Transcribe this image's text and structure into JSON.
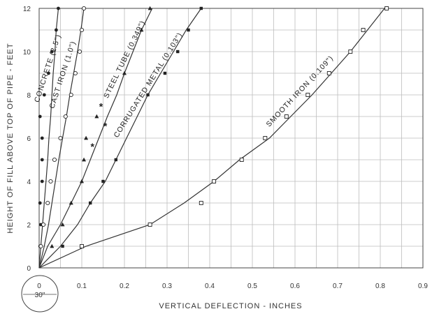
{
  "chart_data": {
    "type": "line",
    "title": "",
    "xlabel": "VERTICAL DEFLECTION - INCHES",
    "ylabel": "HEIGHT OF FILL ABOVE TOP OF PIPE - FEET",
    "xlim": [
      0,
      0.9
    ],
    "ylim": [
      0,
      12
    ],
    "xticks": [
      0,
      0.1,
      0.2,
      0.3,
      0.4,
      0.5,
      0.6,
      0.7,
      0.8,
      0.9
    ],
    "xtick_labels": [
      "0",
      "0.1",
      "0.2",
      "0.3",
      "0.4",
      "0.5",
      "0.6",
      "0.7",
      "0.8",
      "0.9"
    ],
    "yticks": [
      0,
      2,
      4,
      6,
      8,
      10,
      12
    ],
    "grid": true,
    "pipe_symbol_label": "30\"",
    "series": [
      {
        "name": "CONCRETE (2.5\")",
        "marker": "filled-circle",
        "curve": [
          [
            0,
            0
          ],
          [
            0.004,
            1
          ],
          [
            0.008,
            2
          ],
          [
            0.012,
            3
          ],
          [
            0.016,
            4
          ],
          [
            0.02,
            5
          ],
          [
            0.023,
            6
          ],
          [
            0.027,
            7
          ],
          [
            0.03,
            8
          ],
          [
            0.033,
            9
          ],
          [
            0.037,
            10
          ],
          [
            0.04,
            11
          ],
          [
            0.045,
            12
          ]
        ],
        "points": [
          [
            0.002,
            1
          ],
          [
            0.004,
            2
          ],
          [
            0.002,
            3
          ],
          [
            0.007,
            4
          ],
          [
            0.007,
            5
          ],
          [
            0.007,
            6
          ],
          [
            0.002,
            7
          ],
          [
            0.012,
            8
          ],
          [
            0.022,
            9
          ],
          [
            0.03,
            10
          ],
          [
            0.04,
            11
          ],
          [
            0.045,
            12
          ]
        ]
      },
      {
        "name": "CAST IRON (1.0\")",
        "marker": "open-circle",
        "curve": [
          [
            0,
            0
          ],
          [
            0.012,
            1
          ],
          [
            0.022,
            2
          ],
          [
            0.03,
            3
          ],
          [
            0.038,
            4
          ],
          [
            0.046,
            5
          ],
          [
            0.055,
            6
          ],
          [
            0.064,
            7
          ],
          [
            0.072,
            8
          ],
          [
            0.081,
            9
          ],
          [
            0.09,
            10
          ],
          [
            0.098,
            11
          ],
          [
            0.105,
            12
          ]
        ],
        "points": [
          [
            0.004,
            1
          ],
          [
            0.01,
            2
          ],
          [
            0.02,
            3
          ],
          [
            0.027,
            4
          ],
          [
            0.036,
            5
          ],
          [
            0.05,
            6
          ],
          [
            0.062,
            7
          ],
          [
            0.075,
            8
          ],
          [
            0.085,
            9
          ],
          [
            0.095,
            10
          ],
          [
            0.1,
            11
          ],
          [
            0.105,
            12
          ]
        ]
      },
      {
        "name": "STEEL TUBE (0.349\")",
        "marker": "filled-triangle",
        "curve": [
          [
            0,
            0
          ],
          [
            0.02,
            1
          ],
          [
            0.05,
            2
          ],
          [
            0.075,
            3
          ],
          [
            0.1,
            4
          ],
          [
            0.12,
            5
          ],
          [
            0.14,
            6
          ],
          [
            0.16,
            7
          ],
          [
            0.182,
            8
          ],
          [
            0.2,
            9
          ],
          [
            0.22,
            10
          ],
          [
            0.24,
            11
          ],
          [
            0.265,
            12
          ]
        ],
        "points": [
          [
            0.03,
            1
          ],
          [
            0.055,
            2
          ],
          [
            0.075,
            3
          ],
          [
            0.1,
            4
          ],
          [
            0.105,
            5
          ],
          [
            0.11,
            6
          ],
          [
            0.135,
            7
          ],
          [
            0.2,
            9
          ],
          [
            0.24,
            11
          ],
          [
            0.26,
            12
          ]
        ]
      },
      {
        "name": "CORRUGATED METAL (0.103\")",
        "marker": "filled-square",
        "curve": [
          [
            0,
            0
          ],
          [
            0.05,
            1
          ],
          [
            0.09,
            2
          ],
          [
            0.12,
            3
          ],
          [
            0.155,
            4
          ],
          [
            0.18,
            5
          ],
          [
            0.205,
            6
          ],
          [
            0.23,
            7
          ],
          [
            0.255,
            8
          ],
          [
            0.285,
            9
          ],
          [
            0.315,
            10
          ],
          [
            0.345,
            11
          ],
          [
            0.38,
            12
          ]
        ],
        "points": [
          [
            0.055,
            1
          ],
          [
            0.12,
            3
          ],
          [
            0.15,
            4
          ],
          [
            0.18,
            5
          ],
          [
            0.255,
            8
          ],
          [
            0.295,
            9
          ],
          [
            0.325,
            10
          ],
          [
            0.35,
            11
          ],
          [
            0.38,
            12
          ]
        ]
      },
      {
        "name": "SMOOTH IRON (0.109\")",
        "marker": "open-square",
        "curve": [
          [
            0,
            0
          ],
          [
            0.11,
            1
          ],
          [
            0.26,
            2
          ],
          [
            0.34,
            3
          ],
          [
            0.41,
            4
          ],
          [
            0.47,
            5
          ],
          [
            0.54,
            6
          ],
          [
            0.59,
            7
          ],
          [
            0.64,
            8
          ],
          [
            0.685,
            9
          ],
          [
            0.73,
            10
          ],
          [
            0.77,
            11
          ],
          [
            0.81,
            12
          ]
        ],
        "points": [
          [
            0.1,
            1
          ],
          [
            0.26,
            2
          ],
          [
            0.38,
            3
          ],
          [
            0.41,
            4
          ],
          [
            0.475,
            5
          ],
          [
            0.53,
            6
          ],
          [
            0.58,
            7
          ],
          [
            0.63,
            8
          ],
          [
            0.68,
            9
          ],
          [
            0.73,
            10
          ],
          [
            0.76,
            11
          ],
          [
            0.815,
            12
          ]
        ]
      }
    ],
    "annotations": [
      {
        "text": "*",
        "x": 0.125,
        "y": 5.45
      },
      {
        "text": "*",
        "x": 0.155,
        "y": 6.4
      },
      {
        "text": "*",
        "x": 0.145,
        "y": 7.3
      }
    ]
  }
}
